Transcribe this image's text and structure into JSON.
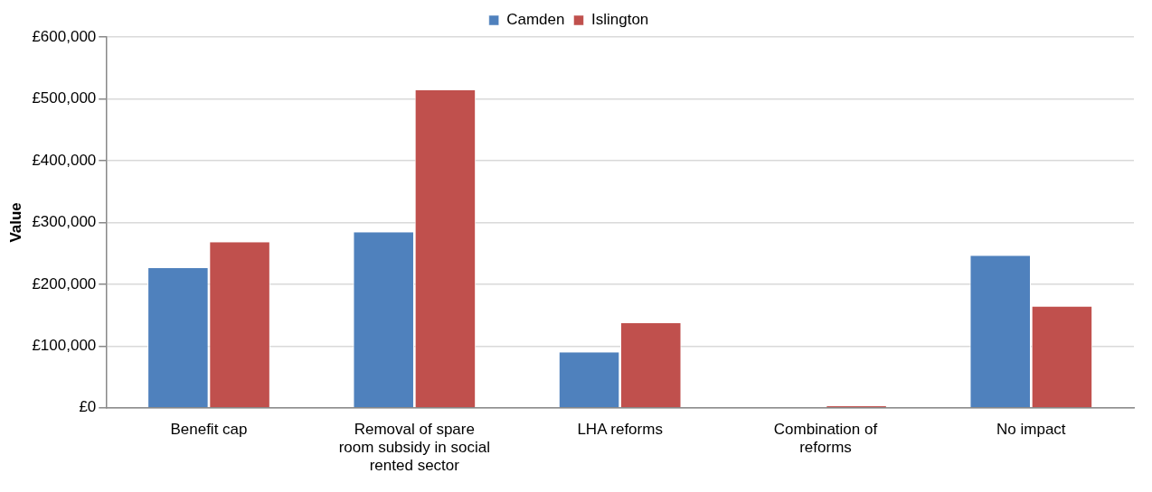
{
  "chart_data": {
    "type": "bar",
    "ylabel": "Value",
    "categories": [
      "Benefit cap",
      "Removal of spare room subsidy in social rented sector",
      "LHA reforms",
      "Combination of reforms",
      "No impact"
    ],
    "series": [
      {
        "name": "Camden",
        "color": "#4f81bd",
        "values": [
          226000,
          284000,
          90000,
          0,
          246000
        ]
      },
      {
        "name": "Islington",
        "color": "#c0504d",
        "values": [
          268000,
          514000,
          137000,
          3000,
          164000
        ]
      }
    ],
    "ylim": [
      0,
      600000
    ],
    "yticks": [
      {
        "value": 0,
        "label": "£0"
      },
      {
        "value": 100000,
        "label": "£100,000"
      },
      {
        "value": 200000,
        "label": "£200,000"
      },
      {
        "value": 300000,
        "label": "£300,000"
      },
      {
        "value": 400000,
        "label": "£400,000"
      },
      {
        "value": 500000,
        "label": "£500,000"
      },
      {
        "value": 600000,
        "label": "£600,000"
      }
    ],
    "grid": "y",
    "legend": "top"
  }
}
